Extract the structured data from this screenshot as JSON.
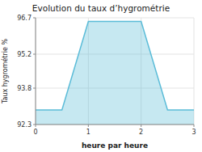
{
  "chart_data": {
    "type": "area",
    "title": "Evolution du taux d’hygrométrie",
    "xlabel": "heure par heure",
    "ylabel": "Taux hygrométrie %",
    "x": [
      0,
      0.5,
      1,
      2,
      2.5,
      3
    ],
    "values": [
      92.9,
      92.9,
      96.55,
      96.55,
      92.9,
      92.9
    ],
    "color": "#5bbcd8",
    "xlim": [
      0,
      3
    ],
    "ylim": [
      92.3,
      96.7
    ],
    "xticks": [
      0,
      1,
      2,
      3
    ],
    "yticks": [
      92.3,
      93.8,
      95.2,
      96.7
    ],
    "grid": true
  }
}
